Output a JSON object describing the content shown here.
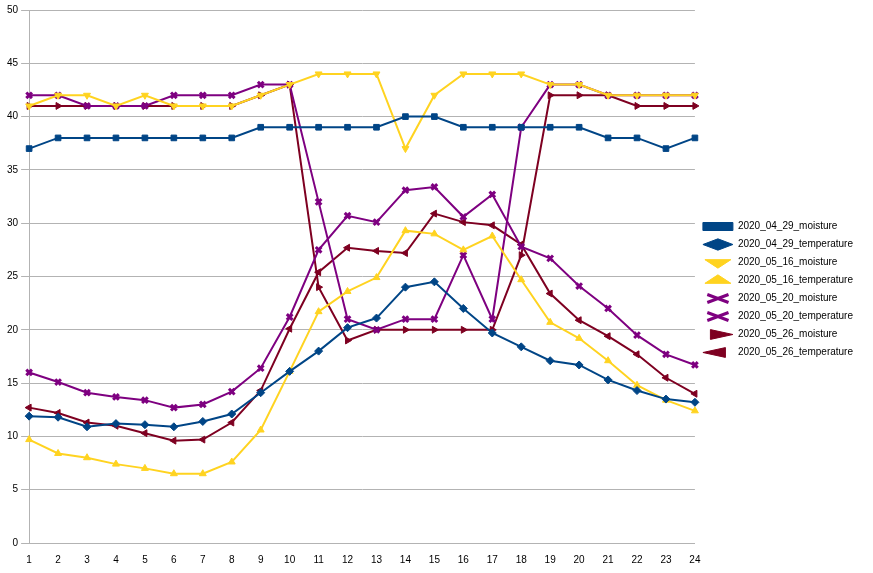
{
  "chart_data": {
    "type": "line",
    "categories": [
      "1",
      "2",
      "3",
      "4",
      "5",
      "6",
      "7",
      "8",
      "9",
      "10",
      "11",
      "12",
      "13",
      "14",
      "15",
      "16",
      "17",
      "18",
      "19",
      "20",
      "21",
      "22",
      "23",
      "24"
    ],
    "series": [
      {
        "name": "2020_04_29_moisture",
        "color": "#004586",
        "marker": "square",
        "values": [
          37,
          38,
          38,
          38,
          38,
          38,
          38,
          38,
          39,
          39,
          39,
          39,
          39,
          40,
          40,
          39,
          39,
          39,
          39,
          39,
          38,
          38,
          37,
          38
        ]
      },
      {
        "name": "2020_04_29_temperature",
        "color": "#004586",
        "marker": "diamond",
        "values": [
          11.9,
          11.8,
          10.9,
          11.2,
          11.1,
          10.9,
          11.4,
          12.1,
          14.1,
          16.1,
          18,
          20.2,
          21.1,
          24,
          24.5,
          22,
          19.7,
          18.4,
          17.1,
          16.7,
          15.3,
          14.3,
          13.5,
          13.2
        ]
      },
      {
        "name": "2020_05_16_moisture",
        "color": "#ffd320",
        "marker": "triangle_down",
        "values": [
          41,
          42,
          42,
          41,
          42,
          41,
          41,
          41,
          42,
          43,
          44,
          44,
          44,
          37,
          42,
          44,
          44,
          44,
          43,
          43,
          42,
          42,
          42,
          42
        ]
      },
      {
        "name": "2020_05_16_temperature",
        "color": "#ffd320",
        "marker": "triangle",
        "values": [
          9.7,
          8.4,
          8,
          7.4,
          7,
          6.5,
          6.5,
          7.6,
          10.6,
          16.1,
          21.7,
          23.6,
          24.9,
          29.3,
          29,
          27.5,
          28.8,
          24.7,
          20.7,
          19.2,
          17.1,
          14.8,
          13.4,
          12.4
        ]
      },
      {
        "name": "2020_05_20_moisture",
        "color": "#7e0080",
        "marker": "bowtie",
        "values": [
          42,
          42,
          41,
          41,
          41,
          42,
          42,
          42,
          43,
          43,
          32,
          21,
          20,
          21,
          21,
          27,
          21,
          39,
          43,
          43,
          42,
          42,
          42,
          42
        ]
      },
      {
        "name": "2020_05_20_temperature",
        "color": "#7e0080",
        "marker": "hourglass",
        "values": [
          16,
          15.1,
          14.1,
          13.7,
          13.4,
          12.7,
          13,
          14.2,
          16.4,
          21.2,
          27.5,
          30.7,
          30.1,
          33.1,
          33.4,
          30.6,
          32.7,
          27.8,
          26.7,
          24.1,
          22,
          19.5,
          17.7,
          16.7
        ]
      },
      {
        "name": "2020_05_26_moisture",
        "color": "#7e0021",
        "marker": "triangle_right",
        "values": [
          41,
          41,
          41,
          41,
          41,
          41,
          41,
          41,
          42,
          43,
          24,
          19,
          20,
          20,
          20,
          20,
          20,
          27,
          42,
          42,
          42,
          41,
          41,
          41
        ]
      },
      {
        "name": "2020_05_26_temperature",
        "color": "#7e0021",
        "marker": "triangle_left",
        "values": [
          12.7,
          12.2,
          11.3,
          11,
          10.3,
          9.6,
          9.7,
          11.3,
          14.3,
          20.1,
          25.4,
          27.7,
          27.4,
          27.2,
          30.9,
          30.1,
          29.8,
          28,
          23.4,
          20.9,
          19.4,
          17.7,
          15.5,
          14
        ]
      }
    ],
    "ylim": [
      0,
      50
    ],
    "yticks": [
      0,
      5,
      10,
      15,
      20,
      25,
      30,
      35,
      40,
      45,
      50
    ],
    "grid": true,
    "legend": "right"
  }
}
